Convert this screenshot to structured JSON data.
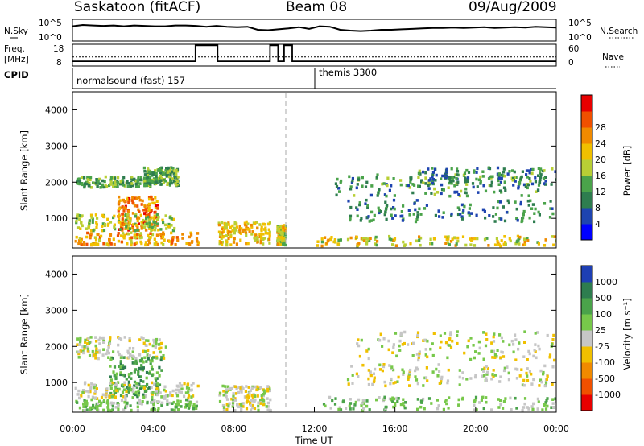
{
  "header": {
    "station": "Saskatoon (fitACF)",
    "beam": "Beam 08",
    "date": "09/Aug/2009"
  },
  "chart_data": [
    {
      "type": "line",
      "panel": "noise",
      "left_label": "N.Sky",
      "right_label": "N.Search",
      "left_ticks": [
        "10^5",
        "10^0"
      ],
      "right_ticks": [
        "10^5",
        "10^0"
      ],
      "series": [
        {
          "values_log10": [
            3.4,
            3.7,
            3.6,
            3.5,
            3.6,
            3.4,
            3.6,
            3.5,
            3.4,
            3.4,
            3.6,
            3.6,
            3.5,
            3.3,
            3.5,
            3.3,
            3.2,
            3.3,
            2.6,
            2.5,
            2.7,
            2.9,
            3.2,
            2.8,
            3.4,
            3.3,
            2.6,
            2.4,
            2.3,
            2.4,
            2.6,
            2.6,
            2.7,
            2.8,
            2.9,
            3.0,
            3.0,
            3.1,
            3.0,
            3.1,
            3.2,
            3.0,
            3.1,
            3.2,
            3.1,
            3.3,
            3.2,
            3.1
          ]
        }
      ]
    },
    {
      "type": "line",
      "panel": "frequency",
      "left_label": "Freq.",
      "left_unit": "[MHz]",
      "right_label": "Nave",
      "left_ticks": [
        "18",
        "8"
      ],
      "right_ticks": [
        "60",
        "0"
      ],
      "series": [
        {
          "x_hours": [
            0,
            6.1,
            6.1,
            7.2,
            7.2,
            9.8,
            9.8,
            10.2,
            10.2,
            10.5,
            10.5,
            10.9,
            10.9,
            12.0,
            12.0,
            24
          ],
          "freq_mhz": [
            10.2,
            10.2,
            17.5,
            17.5,
            10.2,
            10.2,
            17.5,
            17.5,
            10.2,
            10.2,
            17.5,
            17.5,
            10.2,
            10.2,
            10.2,
            10.2
          ]
        },
        {
          "x_hours": [
            0,
            24
          ],
          "nave": [
            25,
            25
          ]
        }
      ]
    },
    {
      "type": "table",
      "panel": "cpid",
      "left_label": "CPID",
      "segments": [
        {
          "start_hour": 0,
          "label": "normalsound (fast) 157"
        },
        {
          "start_hour": 12,
          "label": "themis 3300"
        }
      ]
    },
    {
      "type": "heatmap",
      "panel": "power",
      "ylabel": "Slant Range [km]",
      "ylim": [
        180,
        4500
      ],
      "yticks": [
        "1000",
        "2000",
        "3000",
        "4000"
      ],
      "colorbar": {
        "label": "Power [dB]",
        "range": [
          0,
          32
        ],
        "ticks": [
          "4",
          "8",
          "12",
          "16",
          "20",
          "24",
          "28"
        ],
        "colors": [
          "#0000ff",
          "#1e44b0",
          "#2e7d4f",
          "#4aa34a",
          "#b8cf35",
          "#f0c000",
          "#f08a00",
          "#f05000",
          "#e80000"
        ]
      },
      "regions": [
        {
          "t0": 0.2,
          "t1": 4.2,
          "r0": 1850,
          "r1": 2150,
          "level": 12
        },
        {
          "t0": 3.5,
          "t1": 5.2,
          "r0": 1900,
          "r1": 2400,
          "level": 12
        },
        {
          "t0": 2.2,
          "t1": 4.2,
          "r0": 650,
          "r1": 1600,
          "level": 26
        },
        {
          "t0": 0.1,
          "t1": 6.2,
          "r0": 250,
          "r1": 600,
          "level": 22
        },
        {
          "t0": 0.1,
          "t1": 5.0,
          "r0": 650,
          "r1": 1100,
          "level": 16
        },
        {
          "t0": 7.2,
          "t1": 9.8,
          "r0": 250,
          "r1": 900,
          "level": 20
        },
        {
          "t0": 10.1,
          "t1": 10.5,
          "r0": 250,
          "r1": 800,
          "level": 18
        },
        {
          "t0": 12.0,
          "t1": 24.0,
          "r0": 230,
          "r1": 500,
          "level": 18
        },
        {
          "t0": 13.6,
          "t1": 23.8,
          "r0": 900,
          "r1": 1500,
          "level": 8
        },
        {
          "t0": 13.0,
          "t1": 23.6,
          "r0": 1600,
          "r1": 2200,
          "level": 10
        },
        {
          "t0": 17.0,
          "t1": 24.0,
          "r0": 1900,
          "r1": 2400,
          "level": 9
        }
      ]
    },
    {
      "type": "heatmap",
      "panel": "velocity",
      "ylabel": "Slant Range [km]",
      "xlabel": "Time UT",
      "ylim": [
        180,
        4500
      ],
      "yticks": [
        "1000",
        "2000",
        "3000",
        "4000"
      ],
      "xticks": [
        "00:00",
        "04:00",
        "08:00",
        "12:00",
        "16:00",
        "20:00",
        "00:00"
      ],
      "colorbar": {
        "label": "Velocity [m s⁻¹]",
        "ticks": [
          "1000",
          "500",
          "100",
          "25",
          "-25",
          "-100",
          "-500",
          "-1000"
        ],
        "colors": [
          "#1e3fb4",
          "#2e7d4f",
          "#4aa34a",
          "#77c84a",
          "#c6c6c6",
          "#f0c000",
          "#f08a00",
          "#f05000",
          "#e80000"
        ]
      },
      "regions": [
        {
          "t0": 0.1,
          "t1": 4.6,
          "r0": 1650,
          "r1": 2250,
          "level": 4
        },
        {
          "t0": 1.7,
          "t1": 4.4,
          "r0": 600,
          "r1": 1700,
          "level": 2
        },
        {
          "t0": 0.1,
          "t1": 6.2,
          "r0": 550,
          "r1": 1000,
          "level": 4
        },
        {
          "t0": 0.1,
          "t1": 6.2,
          "r0": 220,
          "r1": 520,
          "level": 3
        },
        {
          "t0": 7.2,
          "t1": 9.8,
          "r0": 220,
          "r1": 900,
          "level": 4
        },
        {
          "t0": 12.0,
          "t1": 24.0,
          "r0": 220,
          "r1": 600,
          "level": 3
        },
        {
          "t0": 13.6,
          "t1": 23.8,
          "r0": 900,
          "r1": 1500,
          "level": 4
        },
        {
          "t0": 14.0,
          "t1": 24.0,
          "r0": 1600,
          "r1": 2400,
          "level": 4
        }
      ]
    }
  ]
}
